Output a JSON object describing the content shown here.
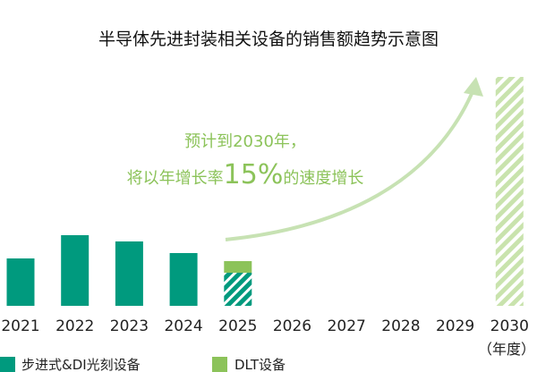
{
  "chart_data": {
    "type": "bar",
    "title": "半导体先进封装相关设备的销售额趋势示意图",
    "categories": [
      "2021",
      "2022",
      "2023",
      "2024",
      "2025",
      "2026",
      "2027",
      "2028",
      "2029",
      "2030"
    ],
    "x_unit": "（年度）",
    "series": [
      {
        "name": "步进式&DI光刻设备",
        "color": "#009a7e",
        "values": [
          53,
          79,
          72,
          59,
          37,
          null,
          null,
          null,
          null,
          null
        ]
      },
      {
        "name": "DLT设备",
        "color": "#8cc35a",
        "values": [
          null,
          null,
          null,
          null,
          13,
          null,
          null,
          null,
          null,
          256
        ]
      }
    ],
    "annotation": {
      "line1": "预计到2030年，",
      "line2_pre": "将以年增长率",
      "line2_rate": "15%",
      "line2_post": "的速度增长"
    },
    "legend_position": "bottom",
    "grid": false,
    "y_axis_visible": false,
    "colors": {
      "stepper": "#009a7e",
      "dlt": "#8cc35a",
      "dlt_light": "#c9e3ad",
      "arrow": "#c7e2b3"
    }
  }
}
